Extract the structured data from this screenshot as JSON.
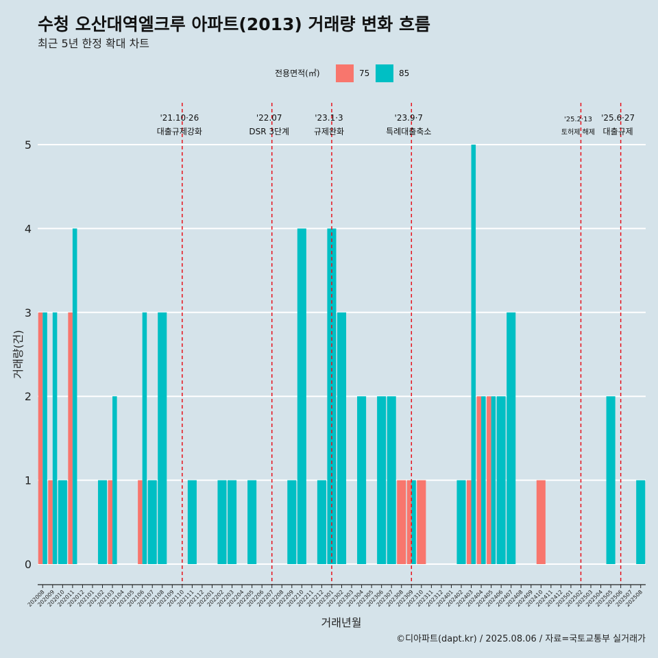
{
  "chart_data": {
    "type": "bar",
    "title": "수청 오산대역엘크루 아파트(2013) 거래량 변화 흐름",
    "subtitle": "최근 5년 한정 확대 차트",
    "xlabel": "거래년월",
    "ylabel": "거래량(건)",
    "ylim": [
      0,
      5
    ],
    "yticks": [
      0,
      1,
      2,
      3,
      4,
      5
    ],
    "caption": "©디아파트(dapt.kr) / 2025.08.06 / 자료=국토교통부 실거래가",
    "legend": {
      "title": "전용면적(㎡)",
      "entries": [
        {
          "name": "75",
          "color": "#f8766d"
        },
        {
          "name": "85",
          "color": "#00bfc4"
        }
      ]
    },
    "categories": [
      "202008",
      "202009",
      "202010",
      "202011",
      "202012",
      "202101",
      "202102",
      "202103",
      "202104",
      "202105",
      "202106",
      "202107",
      "202108",
      "202109",
      "202110",
      "202111",
      "202112",
      "202201",
      "202202",
      "202203",
      "202204",
      "202205",
      "202206",
      "202207",
      "202208",
      "202209",
      "202210",
      "202211",
      "202212",
      "202301",
      "202302",
      "202303",
      "202304",
      "202305",
      "202306",
      "202307",
      "202308",
      "202309",
      "202310",
      "202311",
      "202312",
      "202401",
      "202402",
      "202403",
      "202404",
      "202405",
      "202406",
      "202407",
      "202408",
      "202409",
      "202410",
      "202411",
      "202412",
      "202501",
      "202502",
      "202503",
      "202504",
      "202505",
      "202506",
      "202507",
      "202508"
    ],
    "series": [
      {
        "name": "75",
        "color": "#f8766d",
        "values": [
          3,
          1,
          0,
          3,
          0,
          0,
          0,
          1,
          0,
          0,
          1,
          0,
          0,
          0,
          0,
          0,
          0,
          0,
          0,
          0,
          0,
          0,
          0,
          0,
          0,
          0,
          0,
          0,
          0,
          0,
          0,
          0,
          0,
          0,
          0,
          0,
          1,
          1,
          1,
          0,
          0,
          0,
          0,
          1,
          2,
          2,
          0,
          0,
          0,
          0,
          1,
          0,
          0,
          0,
          0,
          0,
          0,
          0,
          0,
          0,
          0
        ]
      },
      {
        "name": "85",
        "color": "#00bfc4",
        "values": [
          3,
          3,
          1,
          4,
          0,
          0,
          1,
          2,
          0,
          0,
          3,
          1,
          3,
          0,
          0,
          1,
          0,
          0,
          1,
          1,
          0,
          1,
          0,
          0,
          0,
          1,
          4,
          0,
          1,
          4,
          3,
          0,
          2,
          0,
          2,
          2,
          0,
          1,
          0,
          0,
          0,
          0,
          1,
          5,
          2,
          2,
          2,
          3,
          0,
          0,
          0,
          0,
          0,
          0,
          0,
          0,
          0,
          2,
          0,
          0,
          1
        ]
      }
    ],
    "annotations": [
      {
        "date": "202110",
        "line1": "'21.10·26",
        "line2": "대출규제강화"
      },
      {
        "date": "202207",
        "line1": "'22.07",
        "line2": "DSR 3단계"
      },
      {
        "date": "202301",
        "line1": "'23.1·3",
        "line2": "규제완화"
      },
      {
        "date": "202309",
        "line1": "'23.9·7",
        "line2": "특례대출축소"
      },
      {
        "date": "202502",
        "line1": "'25.2·13",
        "line2": "토허제 해제",
        "small": true
      },
      {
        "date": "202506",
        "line1": "'25.6·27",
        "line2": "대출규제"
      }
    ]
  }
}
